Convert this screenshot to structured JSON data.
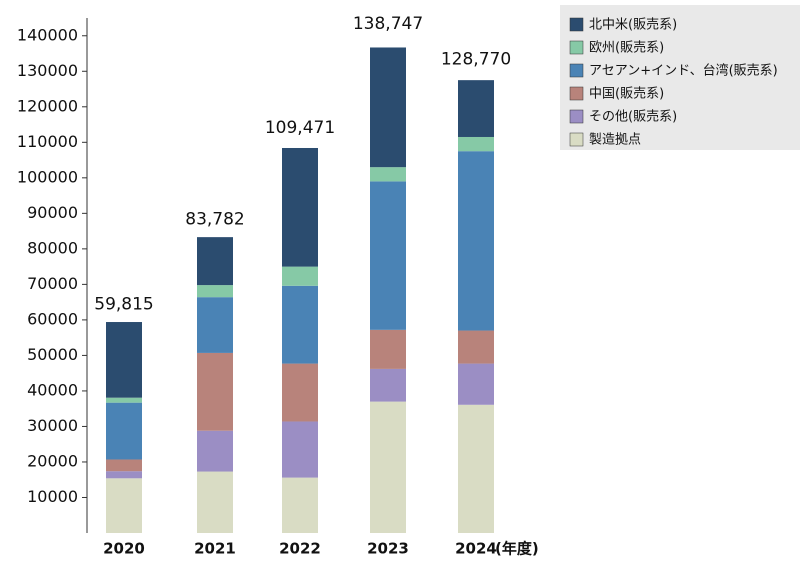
{
  "chart_data": {
    "type": "stacked-bar",
    "categories": [
      "2020",
      "2021",
      "2022",
      "2023",
      "2024"
    ],
    "x_label": "(年度)",
    "series": [
      {
        "name": "北中米(販売系)",
        "color": "#2b4c6f",
        "values": [
          21300,
          13500,
          33400,
          33700,
          16000
        ]
      },
      {
        "name": "欧州(販売系)",
        "color": "#86c9a6",
        "values": [
          1400,
          3400,
          5400,
          4000,
          4000
        ]
      },
      {
        "name": "アセアン+インド、台湾(販売系)",
        "color": "#4a83b5",
        "values": [
          16000,
          15700,
          21900,
          41800,
          50500
        ]
      },
      {
        "name": "中国(販売系)",
        "color": "#b8837b",
        "values": [
          3300,
          21900,
          16300,
          11000,
          9300
        ]
      },
      {
        "name": "その他(販売系)",
        "color": "#9b8ec4",
        "values": [
          2000,
          11500,
          15800,
          9200,
          11600
        ]
      },
      {
        "name": "製造拠点",
        "color": "#d9dcc4",
        "values": [
          15400,
          17300,
          15600,
          37000,
          36100
        ]
      }
    ],
    "totals": {
      "values": [
        59815,
        83782,
        109471,
        138747,
        128770
      ],
      "value_labels": [
        "59,815",
        "83,782",
        "109,471",
        "138,747",
        "128,770"
      ]
    },
    "ylim": [
      0,
      145000
    ],
    "yticks": [
      10000,
      20000,
      30000,
      40000,
      50000,
      60000,
      70000,
      80000,
      90000,
      100000,
      110000,
      120000,
      130000,
      140000
    ],
    "legend": "top-right"
  }
}
